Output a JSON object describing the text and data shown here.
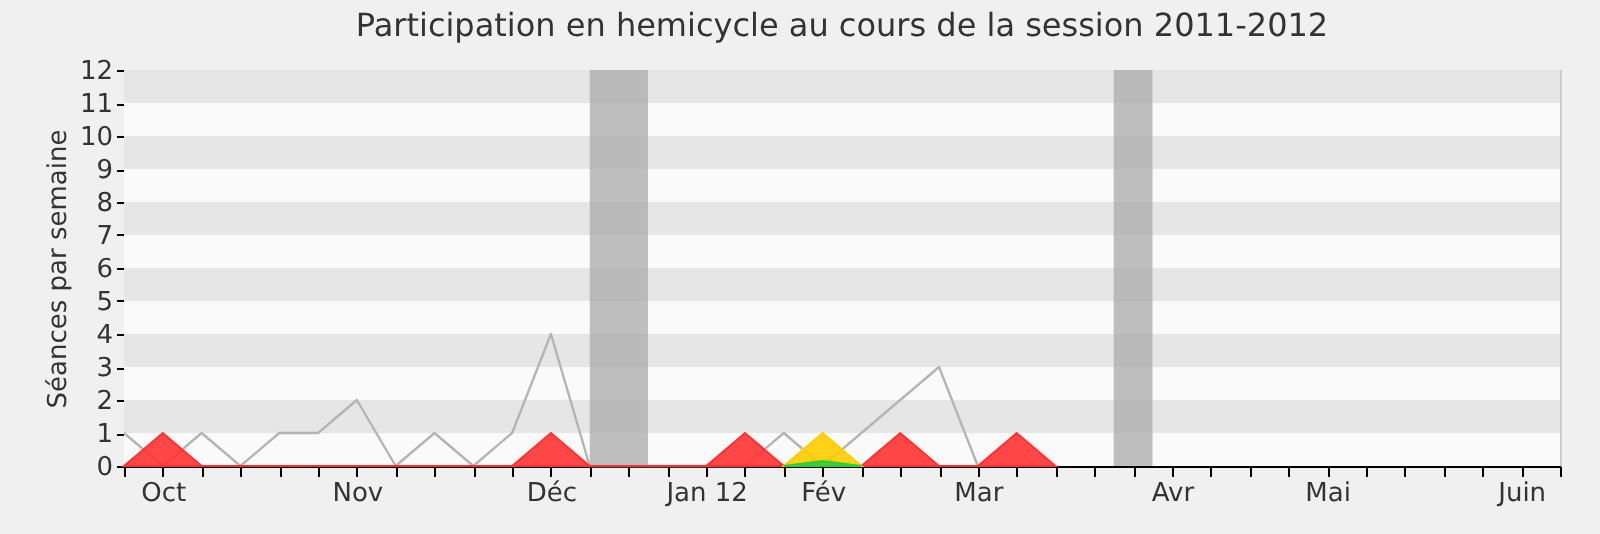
{
  "chart_data": {
    "type": "area",
    "title": "Participation en hemicycle au cours de la session 2011-2012",
    "ylabel": "Séances par semaine",
    "categories": [
      null,
      "Oct",
      null,
      null,
      null,
      null,
      "Nov",
      null,
      null,
      null,
      null,
      "Déc",
      null,
      null,
      null,
      "Jan 12",
      null,
      null,
      "Fév",
      null,
      null,
      null,
      "Mar",
      null,
      null,
      null,
      null,
      "Avr",
      null,
      null,
      null,
      "Mai",
      null,
      null,
      null,
      null,
      "Juin",
      null
    ],
    "ylim": [
      0,
      12
    ],
    "yticks": [
      0,
      1,
      2,
      3,
      4,
      5,
      6,
      7,
      8,
      9,
      10,
      11,
      12
    ],
    "series": [
      {
        "type": "line",
        "color": "#b4b4b4",
        "values": [
          1,
          0,
          1,
          0,
          1,
          1,
          2,
          0,
          1,
          0,
          1,
          4,
          0,
          0,
          0,
          0,
          0,
          1,
          0,
          null,
          null,
          3,
          0,
          null,
          null,
          null,
          null,
          null,
          null,
          null,
          null,
          null,
          null,
          null,
          null,
          null,
          null,
          null
        ]
      },
      {
        "color": "#ff3333",
        "values": [
          0,
          1,
          0,
          0,
          0,
          0,
          0,
          0,
          0,
          0,
          0,
          1,
          0,
          0,
          0,
          0,
          1,
          0,
          0,
          0,
          1,
          0,
          0,
          1,
          0,
          null,
          null,
          null,
          null,
          null,
          null,
          null,
          null,
          null,
          null,
          null,
          null,
          null
        ]
      },
      {
        "color": "#ffcc00",
        "values": [
          null,
          null,
          null,
          null,
          null,
          null,
          null,
          null,
          null,
          null,
          null,
          null,
          null,
          null,
          null,
          null,
          null,
          0,
          1,
          0,
          null,
          null,
          null,
          null,
          null,
          null,
          null,
          null,
          null,
          null,
          null,
          null,
          null,
          null,
          null,
          null,
          null,
          null
        ]
      },
      {
        "color": "#33cc33",
        "values": [
          null,
          null,
          null,
          null,
          null,
          null,
          null,
          null,
          null,
          null,
          null,
          null,
          null,
          null,
          null,
          null,
          null,
          0,
          0.15,
          0,
          null,
          null,
          null,
          null,
          null,
          null,
          null,
          null,
          null,
          null,
          null,
          null,
          null,
          null,
          null,
          null,
          null,
          null
        ]
      }
    ]
  }
}
